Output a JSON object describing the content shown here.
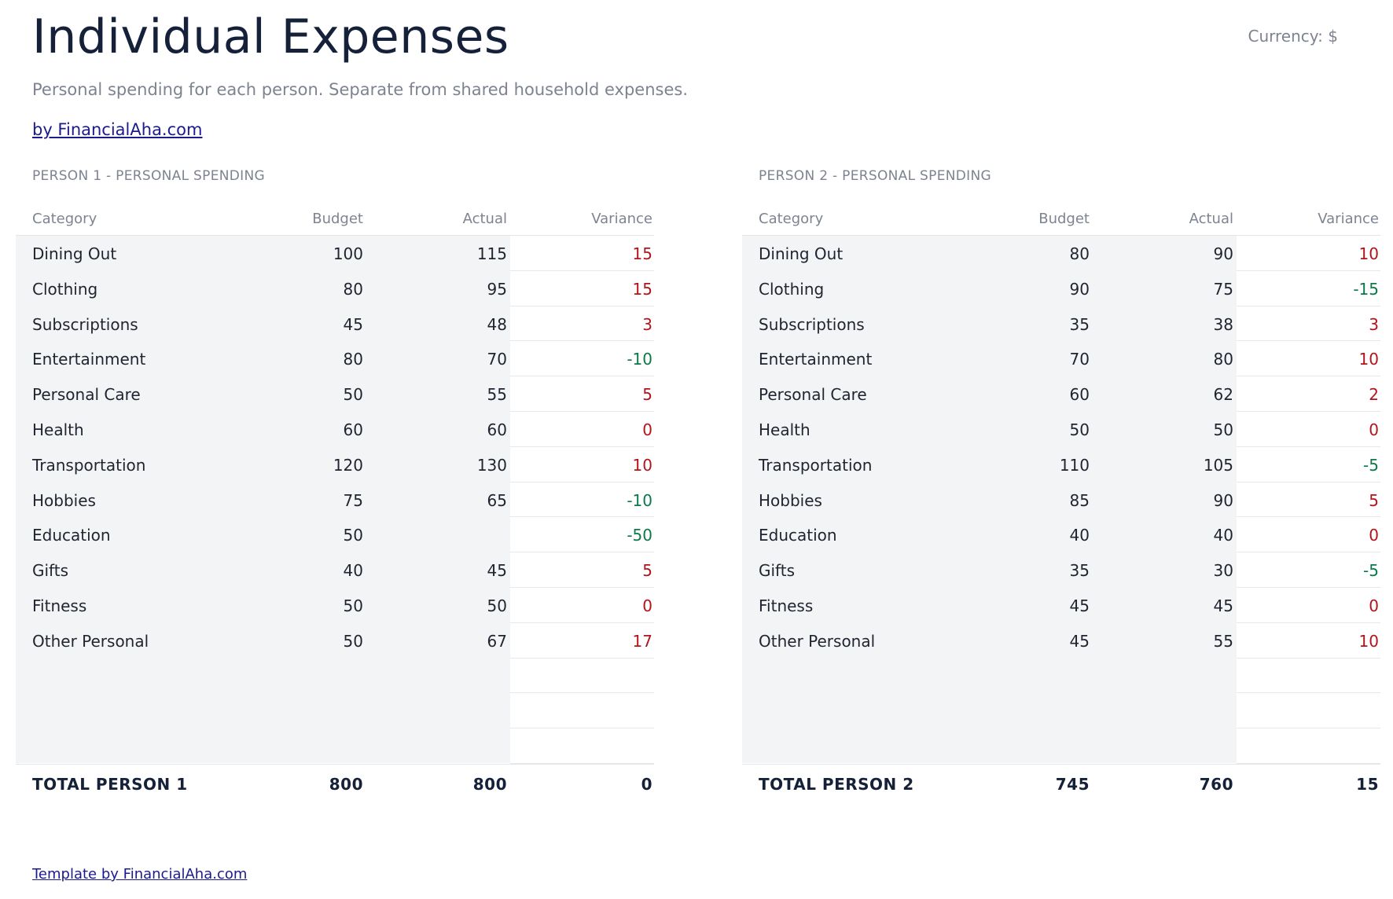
{
  "header": {
    "title": "Individual Expenses",
    "currency": "Currency: $",
    "subtitle": "Personal spending for each person. Separate from shared household expenses.",
    "byline": "by FinancialAha.com"
  },
  "columns": {
    "category": "Category",
    "budget": "Budget",
    "actual": "Actual",
    "variance": "Variance"
  },
  "person1": {
    "section_title": "PERSON 1 - PERSONAL SPENDING",
    "rows": [
      {
        "category": "Dining Out",
        "budget": "100",
        "actual": "115",
        "variance": "15",
        "sign": "pos"
      },
      {
        "category": "Clothing",
        "budget": "80",
        "actual": "95",
        "variance": "15",
        "sign": "pos"
      },
      {
        "category": "Subscriptions",
        "budget": "45",
        "actual": "48",
        "variance": "3",
        "sign": "pos"
      },
      {
        "category": "Entertainment",
        "budget": "80",
        "actual": "70",
        "variance": "-10",
        "sign": "neg"
      },
      {
        "category": "Personal Care",
        "budget": "50",
        "actual": "55",
        "variance": "5",
        "sign": "pos"
      },
      {
        "category": "Health",
        "budget": "60",
        "actual": "60",
        "variance": "0",
        "sign": "pos"
      },
      {
        "category": "Transportation",
        "budget": "120",
        "actual": "130",
        "variance": "10",
        "sign": "pos"
      },
      {
        "category": "Hobbies",
        "budget": "75",
        "actual": "65",
        "variance": "-10",
        "sign": "neg"
      },
      {
        "category": "Education",
        "budget": "50",
        "actual": "",
        "variance": "-50",
        "sign": "neg"
      },
      {
        "category": "Gifts",
        "budget": "40",
        "actual": "45",
        "variance": "5",
        "sign": "pos"
      },
      {
        "category": "Fitness",
        "budget": "50",
        "actual": "50",
        "variance": "0",
        "sign": "pos"
      },
      {
        "category": "Other Personal",
        "budget": "50",
        "actual": "67",
        "variance": "17",
        "sign": "pos"
      },
      {
        "category": "",
        "budget": "",
        "actual": "",
        "variance": "",
        "sign": ""
      },
      {
        "category": "",
        "budget": "",
        "actual": "",
        "variance": "",
        "sign": ""
      },
      {
        "category": "",
        "budget": "",
        "actual": "",
        "variance": "",
        "sign": ""
      }
    ],
    "total": {
      "label": "TOTAL PERSON 1",
      "budget": "800",
      "actual": "800",
      "variance": "0"
    }
  },
  "person2": {
    "section_title": "PERSON 2 - PERSONAL SPENDING",
    "rows": [
      {
        "category": "Dining Out",
        "budget": "80",
        "actual": "90",
        "variance": "10",
        "sign": "pos"
      },
      {
        "category": "Clothing",
        "budget": "90",
        "actual": "75",
        "variance": "-15",
        "sign": "neg"
      },
      {
        "category": "Subscriptions",
        "budget": "35",
        "actual": "38",
        "variance": "3",
        "sign": "pos"
      },
      {
        "category": "Entertainment",
        "budget": "70",
        "actual": "80",
        "variance": "10",
        "sign": "pos"
      },
      {
        "category": "Personal Care",
        "budget": "60",
        "actual": "62",
        "variance": "2",
        "sign": "pos"
      },
      {
        "category": "Health",
        "budget": "50",
        "actual": "50",
        "variance": "0",
        "sign": "pos"
      },
      {
        "category": "Transportation",
        "budget": "110",
        "actual": "105",
        "variance": "-5",
        "sign": "neg"
      },
      {
        "category": "Hobbies",
        "budget": "85",
        "actual": "90",
        "variance": "5",
        "sign": "pos"
      },
      {
        "category": "Education",
        "budget": "40",
        "actual": "40",
        "variance": "0",
        "sign": "pos"
      },
      {
        "category": "Gifts",
        "budget": "35",
        "actual": "30",
        "variance": "-5",
        "sign": "neg"
      },
      {
        "category": "Fitness",
        "budget": "45",
        "actual": "45",
        "variance": "0",
        "sign": "pos"
      },
      {
        "category": "Other Personal",
        "budget": "45",
        "actual": "55",
        "variance": "10",
        "sign": "pos"
      },
      {
        "category": "",
        "budget": "",
        "actual": "",
        "variance": "",
        "sign": ""
      },
      {
        "category": "",
        "budget": "",
        "actual": "",
        "variance": "",
        "sign": ""
      },
      {
        "category": "",
        "budget": "",
        "actual": "",
        "variance": "",
        "sign": ""
      }
    ],
    "total": {
      "label": "TOTAL PERSON 2",
      "budget": "745",
      "actual": "760",
      "variance": "15"
    }
  },
  "colors": {
    "positive_variance": "#b3141b",
    "negative_variance": "#0a7a4a",
    "title": "#152039",
    "link": "#1b1b8c"
  },
  "footer": {
    "link": "Template by FinancialAha.com"
  }
}
